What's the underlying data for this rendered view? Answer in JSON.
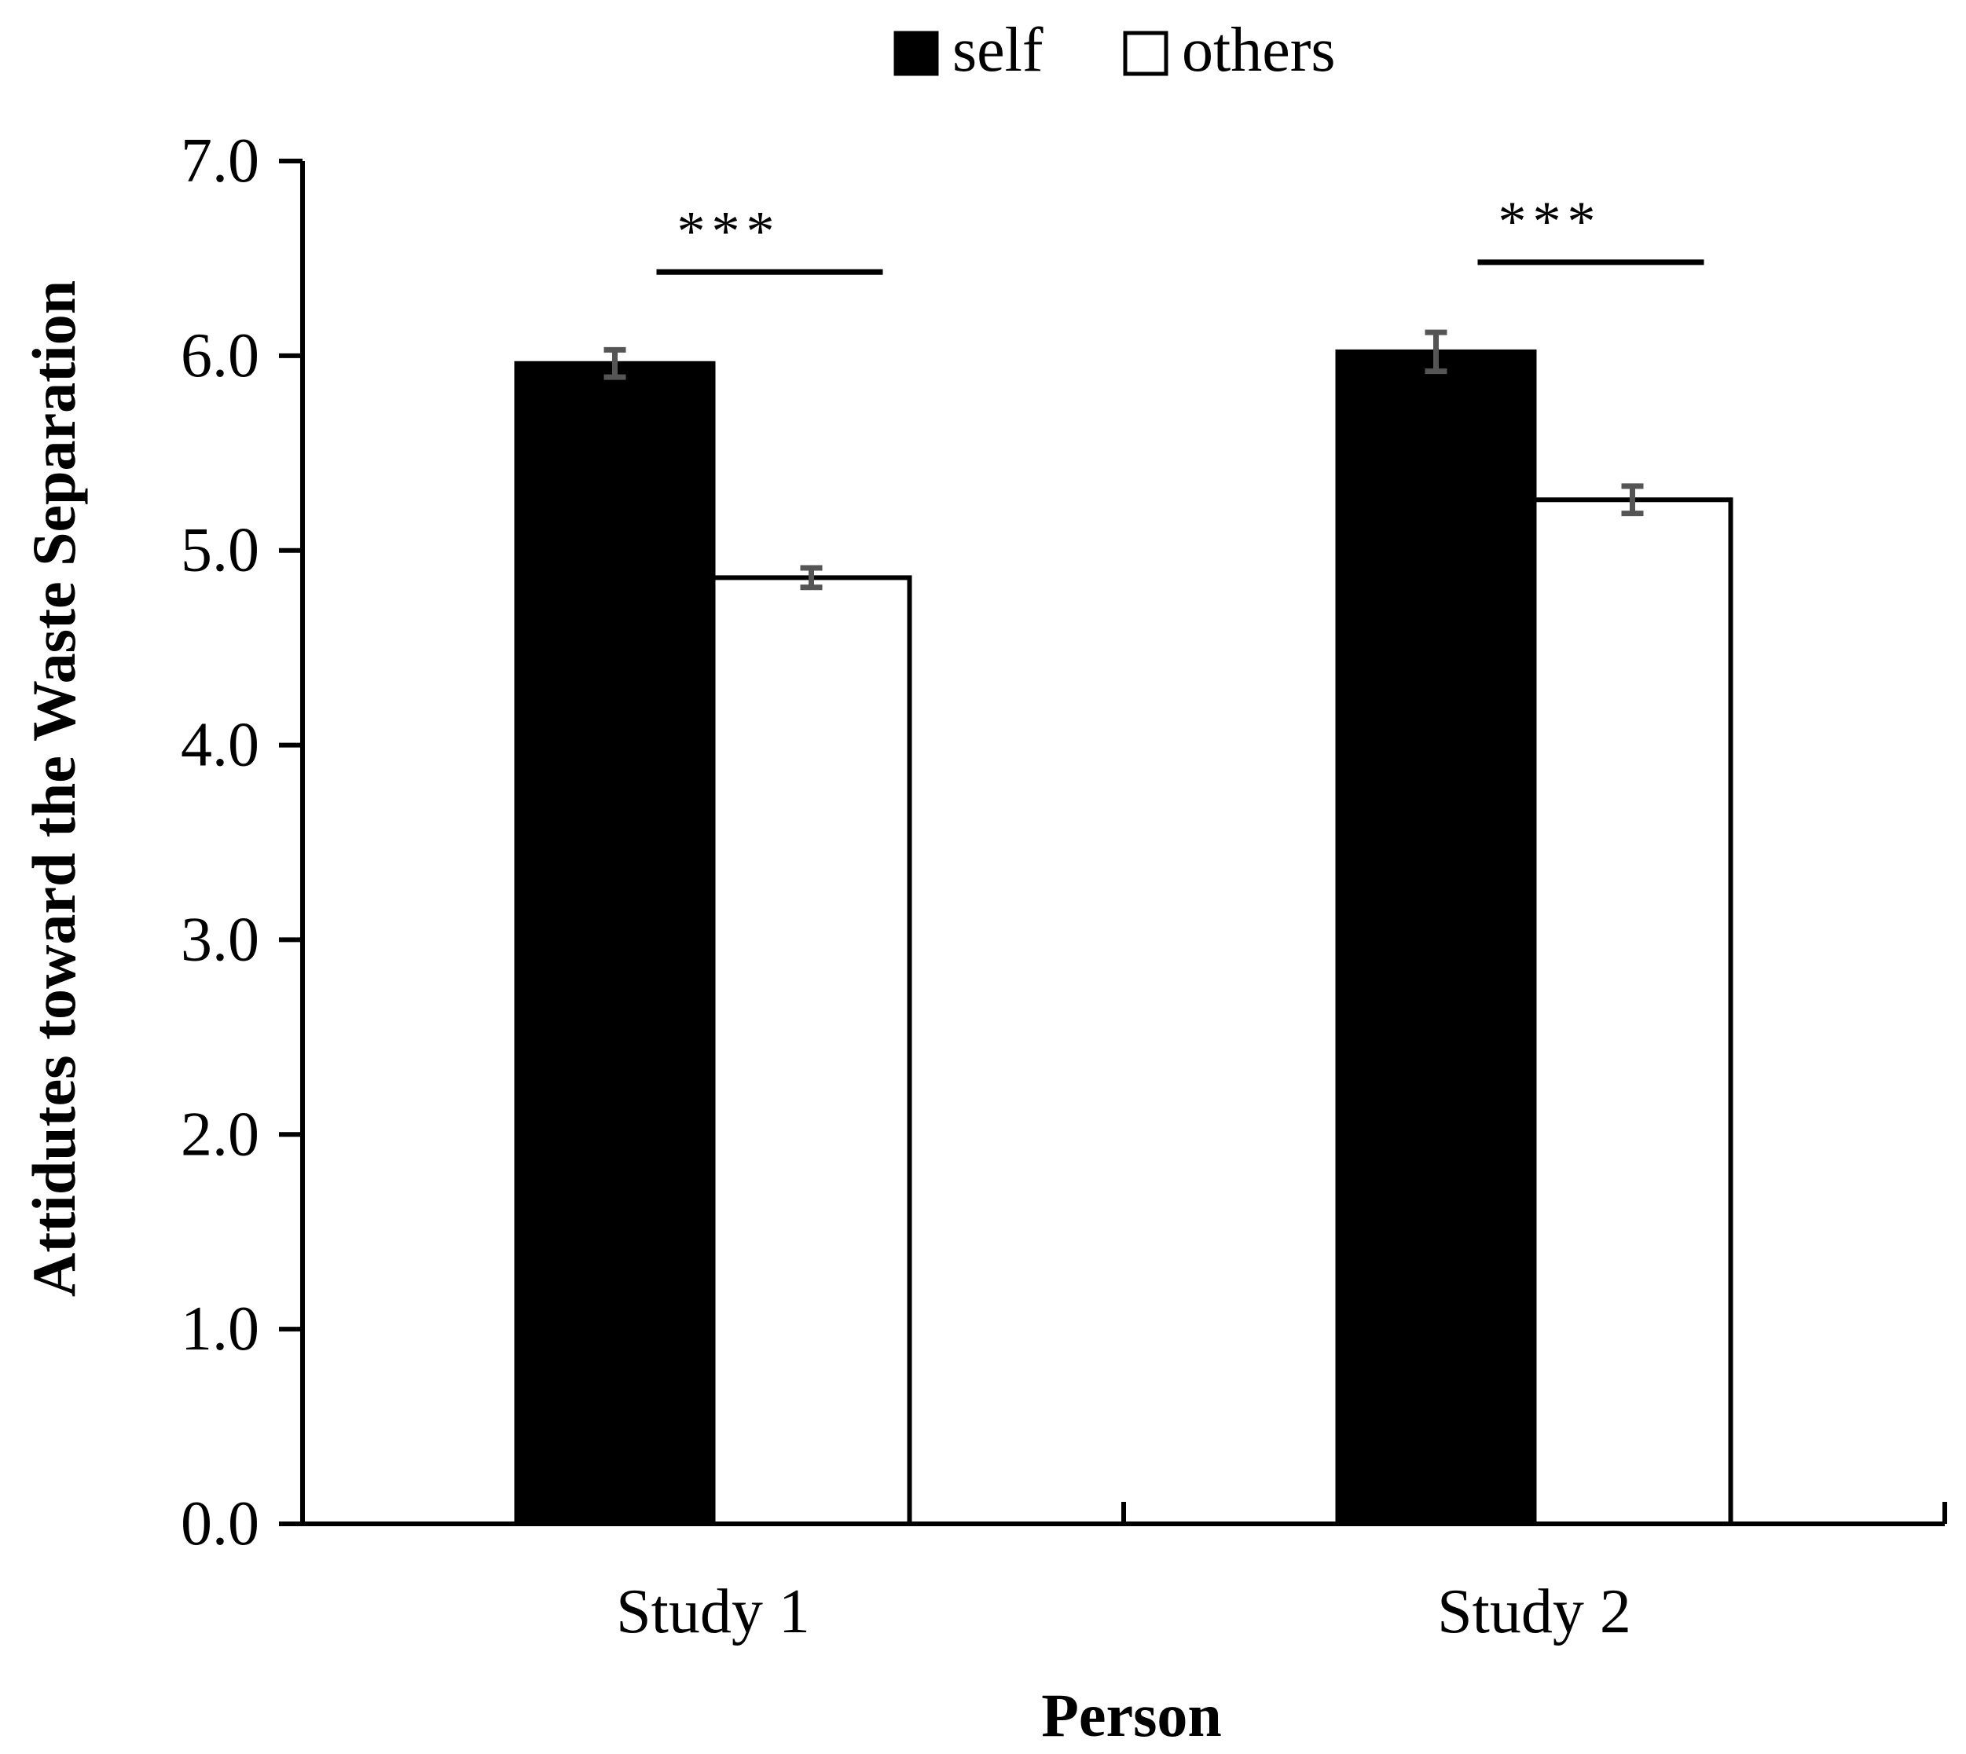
{
  "chart_data": {
    "type": "bar",
    "title": "",
    "xlabel": "Person",
    "ylabel": "Attidutes toward the Waste Separation",
    "categories": [
      "Study 1",
      "Study 2"
    ],
    "series": [
      {
        "name": "self",
        "color": "#000000",
        "values": [
          5.96,
          6.02
        ],
        "errors": [
          0.07,
          0.1
        ]
      },
      {
        "name": "others",
        "color": "#ffffff",
        "values": [
          4.86,
          5.26
        ],
        "errors": [
          0.05,
          0.07
        ]
      }
    ],
    "ylim": [
      0,
      7
    ],
    "yticks": [
      0,
      1,
      2,
      3,
      4,
      5,
      6,
      7
    ],
    "ytick_labels": [
      "0.0",
      "1.0",
      "2.0",
      "3.0",
      "4.0",
      "5.0",
      "6.0",
      "7.0"
    ],
    "legend_position": "top-center",
    "grid": false,
    "significance": [
      {
        "category": "Study 1",
        "label": "***",
        "y": 6.43
      },
      {
        "category": "Study 2",
        "label": "***",
        "y": 6.48
      }
    ]
  }
}
